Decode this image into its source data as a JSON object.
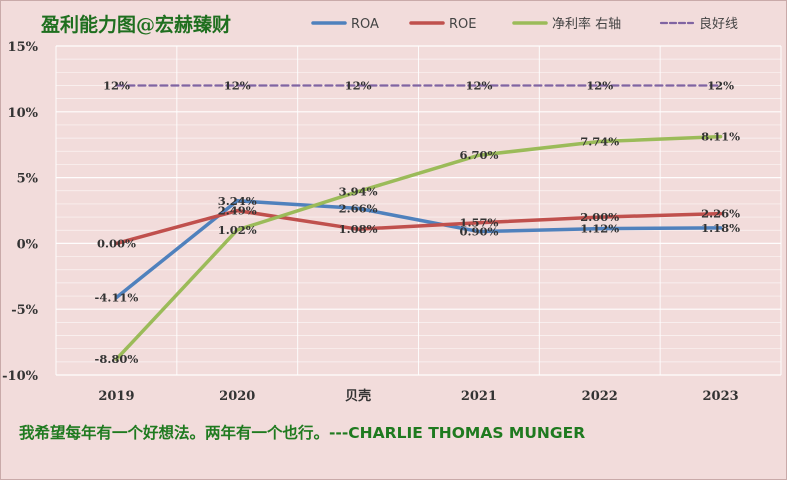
{
  "title": "盈利能力图@宏赫臻财",
  "quote": "我希望每年有一个好想法。两年有一个也行。---CHARLIE THOMAS MUNGER",
  "chart_data": {
    "type": "line",
    "categories": [
      "2019",
      "2020",
      "贝壳",
      "2021",
      "2022",
      "2023"
    ],
    "y_ticks": [
      "15%",
      "10%",
      "5%",
      "0%",
      "-5%",
      "-10%"
    ],
    "ylim": [
      -10,
      15
    ],
    "grid": true,
    "legend_position": "top",
    "series": [
      {
        "name": "ROA",
        "color": "#4f81bd",
        "values": [
          -4.11,
          3.24,
          2.66,
          0.9,
          1.12,
          1.18
        ],
        "labels": [
          "-4.11%",
          "3.24%",
          "2.66%",
          "0.90%",
          "1.12%",
          "1.18%"
        ]
      },
      {
        "name": "ROE",
        "color": "#c0504d",
        "values": [
          0.0,
          2.49,
          1.08,
          1.57,
          2.0,
          2.26
        ],
        "labels": [
          "0.00%",
          "2.49%",
          "1.08%",
          "1.57%",
          "2.00%",
          "2.26%"
        ]
      },
      {
        "name": "净利率 右轴",
        "color": "#9bbb59",
        "values": [
          -8.8,
          1.02,
          3.94,
          6.7,
          7.74,
          8.11
        ],
        "labels": [
          "-8.80%",
          "1.02%",
          "3.94%",
          "6.70%",
          "7.74%",
          "8.11%"
        ]
      },
      {
        "name": "良好线",
        "color": "#8064a2",
        "dashed": true,
        "values": [
          12,
          12,
          12,
          12,
          12,
          12
        ],
        "labels": [
          "12%",
          "12%",
          "12%",
          "12%",
          "12%",
          "12%"
        ]
      }
    ]
  }
}
